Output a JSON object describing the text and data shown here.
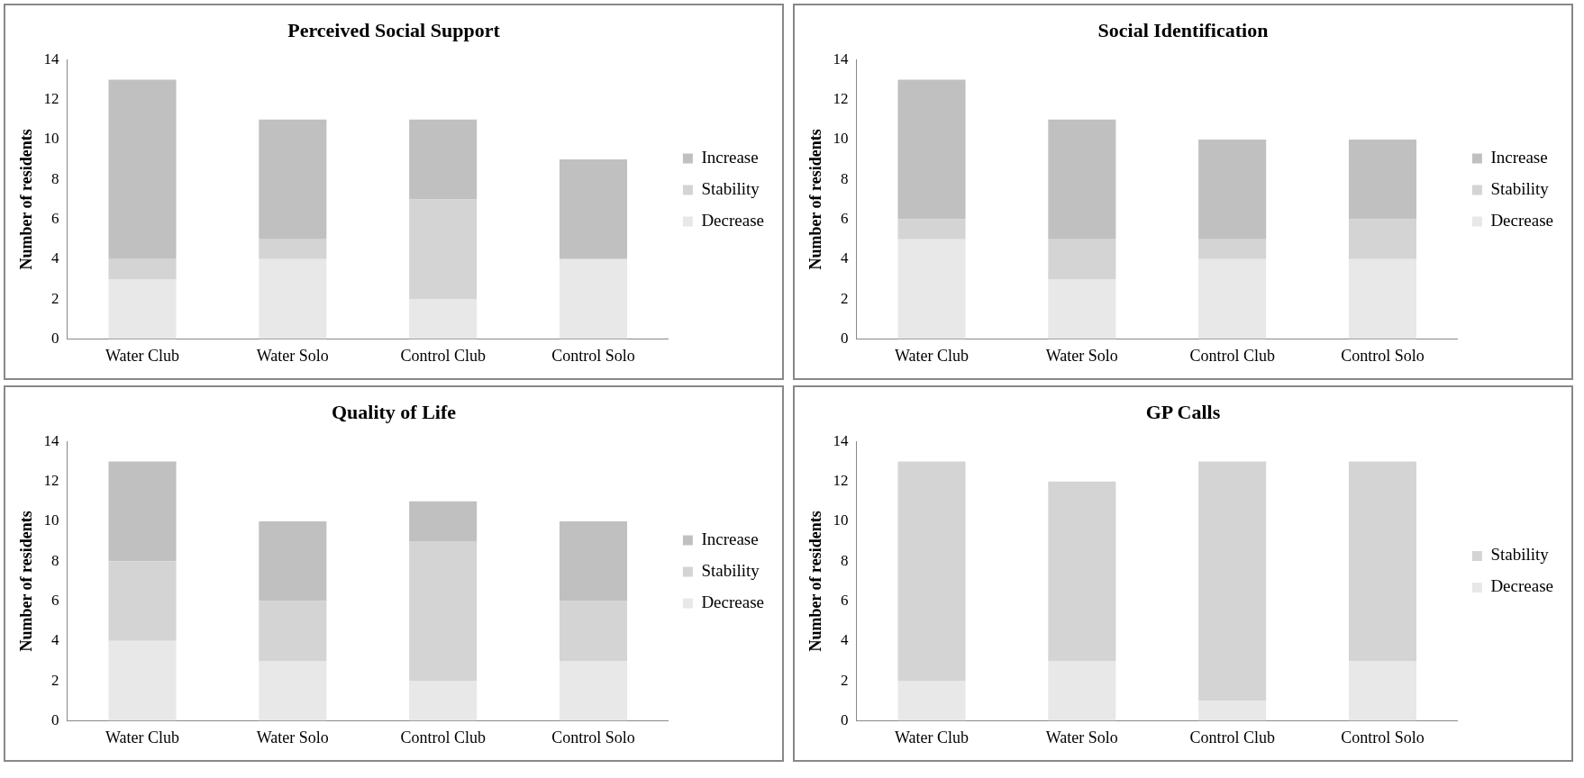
{
  "chart_data": [
    {
      "type": "bar",
      "title": "Perceived Social Support",
      "ylabel": "Number of residents",
      "categories": [
        "Water Club",
        "Water Solo",
        "Control Club",
        "Control Solo"
      ],
      "stacked": true,
      "ylim": [
        0,
        14
      ],
      "yticks": [
        0,
        2,
        4,
        6,
        8,
        10,
        12,
        14
      ],
      "grid": false,
      "legend": "right",
      "series": [
        {
          "name": "Decrease",
          "color": "#e8e8e8",
          "values": [
            3,
            4,
            2,
            4
          ]
        },
        {
          "name": "Stability",
          "color": "#d4d4d4",
          "values": [
            1,
            1,
            5,
            0
          ]
        },
        {
          "name": "Increase",
          "color": "#c0c0c0",
          "values": [
            9,
            6,
            4,
            5
          ]
        }
      ]
    },
    {
      "type": "bar",
      "title": "Social Identification",
      "ylabel": "Number of residents",
      "categories": [
        "Water Club",
        "Water Solo",
        "Control Club",
        "Control Solo"
      ],
      "stacked": true,
      "ylim": [
        0,
        14
      ],
      "yticks": [
        0,
        2,
        4,
        6,
        8,
        10,
        12,
        14
      ],
      "grid": false,
      "legend": "right",
      "series": [
        {
          "name": "Decrease",
          "color": "#e8e8e8",
          "values": [
            5,
            3,
            4,
            4
          ]
        },
        {
          "name": "Stability",
          "color": "#d4d4d4",
          "values": [
            1,
            2,
            1,
            2
          ]
        },
        {
          "name": "Increase",
          "color": "#c0c0c0",
          "values": [
            7,
            6,
            5,
            4
          ]
        }
      ]
    },
    {
      "type": "bar",
      "title": "Quality of Life",
      "ylabel": "Number of residents",
      "categories": [
        "Water Club",
        "Water Solo",
        "Control Club",
        "Control Solo"
      ],
      "stacked": true,
      "ylim": [
        0,
        14
      ],
      "yticks": [
        0,
        2,
        4,
        6,
        8,
        10,
        12,
        14
      ],
      "grid": false,
      "legend": "right",
      "series": [
        {
          "name": "Decrease",
          "color": "#e8e8e8",
          "values": [
            4,
            3,
            2,
            3
          ]
        },
        {
          "name": "Stability",
          "color": "#d4d4d4",
          "values": [
            4,
            3,
            7,
            3
          ]
        },
        {
          "name": "Increase",
          "color": "#c0c0c0",
          "values": [
            5,
            4,
            2,
            4
          ]
        }
      ]
    },
    {
      "type": "bar",
      "title": "GP Calls",
      "ylabel": "Number of residents",
      "categories": [
        "Water Club",
        "Water Solo",
        "Control Club",
        "Control Solo"
      ],
      "stacked": true,
      "ylim": [
        0,
        14
      ],
      "yticks": [
        0,
        2,
        4,
        6,
        8,
        10,
        12,
        14
      ],
      "grid": false,
      "legend": "right",
      "series": [
        {
          "name": "Decrease",
          "color": "#e8e8e8",
          "values": [
            2,
            3,
            1,
            3
          ]
        },
        {
          "name": "Stability",
          "color": "#d4d4d4",
          "values": [
            11,
            9,
            12,
            10
          ]
        }
      ]
    }
  ]
}
